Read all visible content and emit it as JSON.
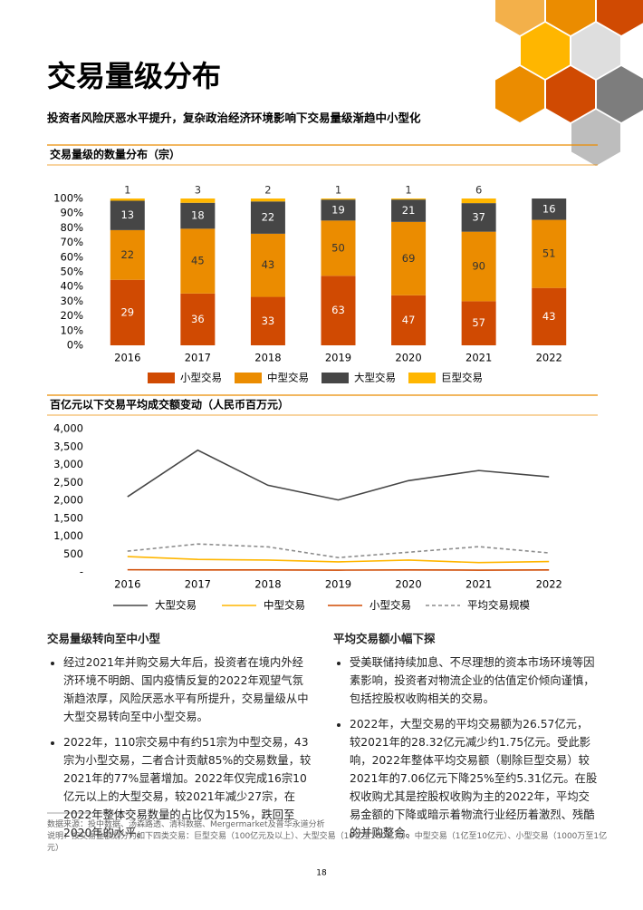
{
  "title": "交易量级分布",
  "subtitle": "投资者风险厌恶水平提升，复杂政治经济环境影响下交易量级渐趋中小型化",
  "chart_data": [
    {
      "type": "bar",
      "stacking": "percent",
      "title": "交易量级的数量分布（宗）",
      "categories": [
        "2016",
        "2017",
        "2018",
        "2019",
        "2020",
        "2021",
        "2022"
      ],
      "series": [
        {
          "name": "小型交易",
          "color": "#d04a02",
          "label_color": "#ffffff",
          "values": [
            29,
            36,
            33,
            63,
            47,
            57,
            43
          ]
        },
        {
          "name": "中型交易",
          "color": "#eb8c00",
          "label_color": "#333333",
          "values": [
            22,
            45,
            43,
            50,
            69,
            90,
            51
          ]
        },
        {
          "name": "大型交易",
          "color": "#464646",
          "label_color": "#ffffff",
          "values": [
            13,
            18,
            22,
            19,
            21,
            37,
            16
          ]
        },
        {
          "name": "巨型交易",
          "color": "#ffb600",
          "label_color": "#333333",
          "values": [
            1,
            3,
            2,
            1,
            1,
            6,
            null
          ]
        }
      ],
      "ylim": [
        0,
        100
      ],
      "yticks": [
        {
          "value": 0,
          "label": "0%"
        },
        {
          "value": 10,
          "label": "10%"
        },
        {
          "value": 20,
          "label": "20%"
        },
        {
          "value": 30,
          "label": "30%"
        },
        {
          "value": 40,
          "label": "40%"
        },
        {
          "value": 50,
          "label": "50%"
        },
        {
          "value": 60,
          "label": "60%"
        },
        {
          "value": 70,
          "label": "70%"
        },
        {
          "value": 80,
          "label": "80%"
        },
        {
          "value": 90,
          "label": "90%"
        },
        {
          "value": 100,
          "label": "100%"
        }
      ],
      "grid": false
    },
    {
      "type": "line",
      "title": "百亿元以下交易平均成交额变动（人民币百万元）",
      "categories": [
        "2016",
        "2017",
        "2018",
        "2019",
        "2020",
        "2021",
        "2022"
      ],
      "series": [
        {
          "name": "大型交易",
          "color": "#464646",
          "dashed": false,
          "values": [
            2100,
            3400,
            2420,
            2010,
            2550,
            2832,
            2657
          ]
        },
        {
          "name": "中型交易",
          "color": "#ffb600",
          "dashed": false,
          "values": [
            430,
            350,
            330,
            280,
            330,
            260,
            290
          ]
        },
        {
          "name": "小型交易",
          "color": "#d04a02",
          "dashed": false,
          "values": [
            60,
            55,
            55,
            50,
            55,
            50,
            55
          ]
        },
        {
          "name": "平均交易规模",
          "color": "#8c8c8c",
          "dashed": true,
          "values": [
            580,
            780,
            700,
            400,
            550,
            706,
            531
          ]
        }
      ],
      "ylim": [
        0,
        4000
      ],
      "yticks": [
        {
          "value": 0,
          "label": "-"
        },
        500,
        {
          "value": 1000,
          "label": "1,000"
        },
        {
          "value": 1500,
          "label": "1,500"
        },
        {
          "value": 2000,
          "label": "2,000"
        },
        {
          "value": 2500,
          "label": "2,500"
        },
        {
          "value": 3000,
          "label": "3,000"
        },
        {
          "value": 3500,
          "label": "3,500"
        },
        {
          "value": 4000,
          "label": "4,000"
        }
      ],
      "grid": false
    }
  ],
  "sections": [
    {
      "heading": "交易量级转向至中小型",
      "bullets": [
        "经过2021年并购交易大年后，投资者在境内外经济环境不明朗、国内疫情反复的2022年观望气氛渐趋浓厚，风险厌恶水平有所提升，交易量级从中大型交易转向至中小型交易。",
        "2022年，110宗交易中有约51宗为中型交易，43宗为小型交易，二者合计贡献85%的交易数量，较2021年的77%显著增加。2022年仅完成16宗10亿元以上的大型交易，较2021年减少27宗，在2022年整体交易数量的占比仅为15%，跌回至2020年的水平。"
      ]
    },
    {
      "heading": "平均交易额小幅下探",
      "bullets": [
        "受美联储持续加息、不尽理想的资本市场环境等因素影响，投资者对物流企业的估值定价倾向谨慎，包括控股权收购相关的交易。",
        "2022年，大型交易的平均交易额为26.57亿元，较2021年的28.32亿元减少约1.75亿元。受此影响，2022年整体平均交易额（剔除巨型交易）较2021年的7.06亿元下降25%至约5.31亿元。在股权收购尤其是控股权收购为主的2022年，平均交易金额的下降或暗示着物流行业经历着激烈、残酷的并购整合。"
      ]
    }
  ],
  "footnotes": [
    "数据来源：投中数据、汤森路透、清科数据、Mergermarket及普华永道分析",
    "说明：按交易金额划分为如下四类交易：巨型交易（100亿元及以上）、大型交易（10亿至100亿元）、中型交易（1亿至10亿元）、小型交易（1000万至1亿元）"
  ],
  "page_number": "18"
}
